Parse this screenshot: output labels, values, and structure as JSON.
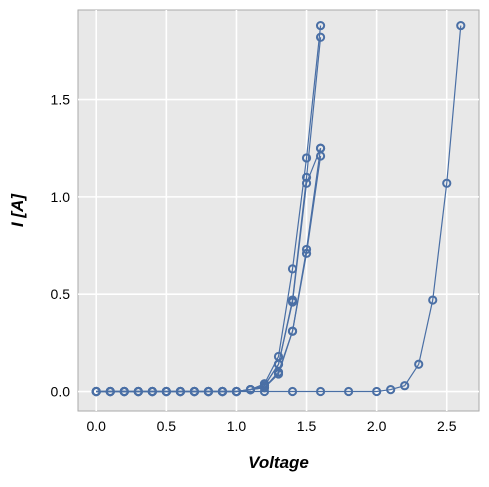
{
  "chart_data": {
    "type": "line",
    "title": "",
    "xlabel": "Voltage",
    "ylabel": "I [A]",
    "xlim": [
      -0.13,
      2.73
    ],
    "ylim": [
      -0.1,
      1.96
    ],
    "xticks": [
      0.0,
      0.5,
      1.0,
      1.5,
      2.0,
      2.5
    ],
    "xtick_labels": [
      "0.0",
      "0.5",
      "1.0",
      "1.5",
      "2.0",
      "2.5"
    ],
    "yticks": [
      0.0,
      0.5,
      1.0,
      1.5
    ],
    "ytick_labels": [
      "0.0",
      "0.5",
      "1.0",
      "1.5"
    ],
    "grid": true,
    "legend": false,
    "colors": {
      "series": "#4a6fa5",
      "panel_background": "#e8e8e8",
      "grid": "#ffffff",
      "border": "#aaaaaa"
    },
    "marker": "open-circle",
    "series": [
      {
        "x": [
          0.0,
          0.1,
          0.2,
          0.3,
          0.4,
          0.5,
          0.6,
          0.7,
          0.8,
          0.9,
          1.0,
          1.1,
          1.2,
          1.3,
          1.4,
          1.5,
          1.6
        ],
        "values": [
          0.0,
          0.0,
          0.0,
          0.0,
          0.0,
          0.0,
          0.0,
          0.0,
          0.0,
          0.0,
          0.0,
          0.01,
          0.04,
          0.18,
          0.63,
          1.2,
          1.88
        ]
      },
      {
        "x": [
          0.0,
          0.1,
          0.2,
          0.3,
          0.4,
          0.5,
          0.6,
          0.7,
          0.8,
          0.9,
          1.0,
          1.1,
          1.2,
          1.3,
          1.4,
          1.5,
          1.6
        ],
        "values": [
          0.0,
          0.0,
          0.0,
          0.0,
          0.0,
          0.0,
          0.0,
          0.0,
          0.0,
          0.0,
          0.0,
          0.01,
          0.03,
          0.14,
          0.47,
          1.1,
          1.82
        ]
      },
      {
        "x": [
          0.0,
          0.1,
          0.2,
          0.3,
          0.4,
          0.5,
          0.6,
          0.7,
          0.8,
          0.9,
          1.0,
          1.1,
          1.2,
          1.3,
          1.4,
          1.5,
          1.6
        ],
        "values": [
          0.0,
          0.0,
          0.0,
          0.0,
          0.0,
          0.0,
          0.0,
          0.0,
          0.0,
          0.0,
          0.0,
          0.01,
          0.03,
          0.14,
          0.46,
          1.07,
          1.25
        ]
      },
      {
        "x": [
          0.0,
          0.1,
          0.2,
          0.3,
          0.4,
          0.5,
          0.6,
          0.7,
          0.8,
          0.9,
          1.0,
          1.1,
          1.2,
          1.3,
          1.4,
          1.5,
          1.6
        ],
        "values": [
          0.0,
          0.0,
          0.0,
          0.0,
          0.0,
          0.0,
          0.0,
          0.0,
          0.0,
          0.0,
          0.0,
          0.01,
          0.02,
          0.1,
          0.31,
          0.73,
          1.25
        ]
      },
      {
        "x": [
          0.0,
          0.1,
          0.2,
          0.3,
          0.4,
          0.5,
          0.6,
          0.7,
          0.8,
          0.9,
          1.0,
          1.1,
          1.2,
          1.3,
          1.4,
          1.5,
          1.6
        ],
        "values": [
          0.0,
          0.0,
          0.0,
          0.0,
          0.0,
          0.0,
          0.0,
          0.0,
          0.0,
          0.0,
          0.0,
          0.01,
          0.02,
          0.09,
          0.31,
          0.71,
          1.21
        ]
      },
      {
        "x": [
          0.0,
          0.1,
          0.2,
          0.3,
          0.4,
          0.5,
          0.6,
          0.7,
          0.8,
          0.9,
          1.0,
          1.2,
          1.4,
          1.6,
          1.8,
          2.0,
          2.1,
          2.2,
          2.3,
          2.4,
          2.5,
          2.6
        ],
        "values": [
          0.0,
          0.0,
          0.0,
          0.0,
          0.0,
          0.0,
          0.0,
          0.0,
          0.0,
          0.0,
          0.0,
          0.0,
          0.0,
          0.0,
          0.0,
          0.0,
          0.01,
          0.03,
          0.14,
          0.47,
          1.07,
          1.88
        ]
      }
    ]
  }
}
